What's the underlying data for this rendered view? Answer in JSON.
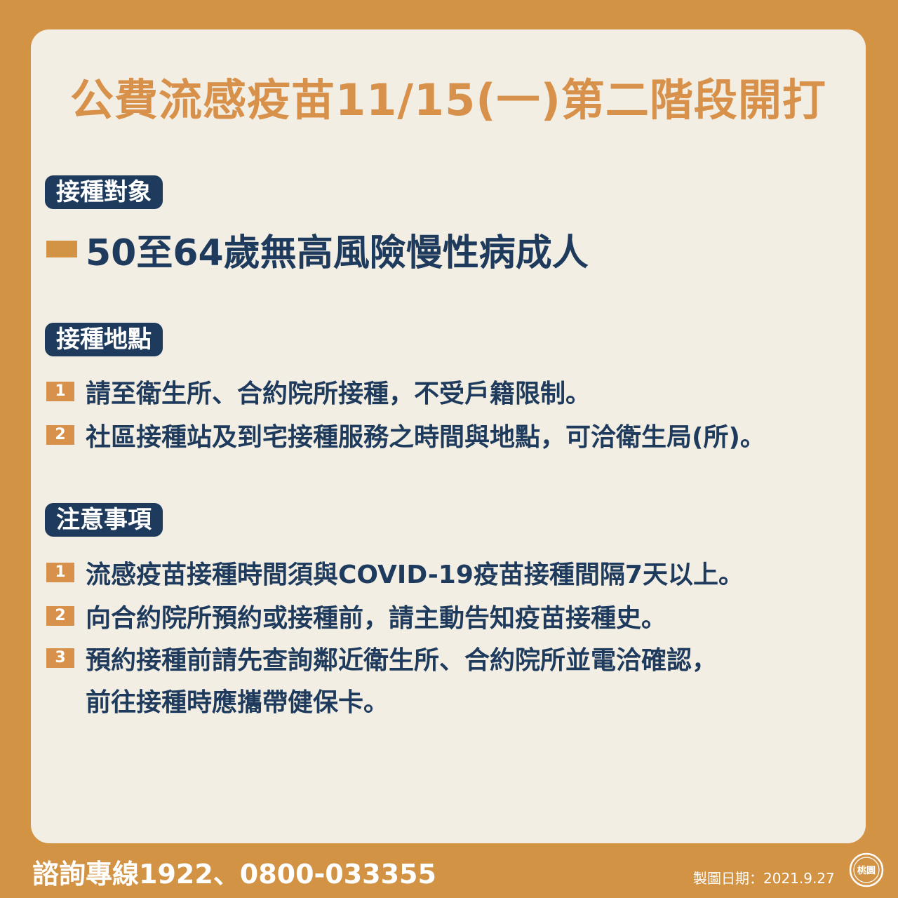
{
  "title": "公費流感疫苗11/15(一)第二階段開打",
  "section_target": {
    "tag": "接種對象",
    "text": "50至64歲無高風險慢性病成人"
  },
  "section_location": {
    "tag": "接種地點",
    "items": [
      {
        "num": "1",
        "text": "請至衛生所、合約院所接種，不受戶籍限制。"
      },
      {
        "num": "2",
        "text": "社區接種站及到宅接種服務之時間與地點，可洽衛生局(所)。"
      }
    ]
  },
  "section_notes": {
    "tag": "注意事項",
    "items": [
      {
        "num": "1",
        "text": "流感疫苗接種時間須與COVID-19疫苗接種間隔7天以上。"
      },
      {
        "num": "2",
        "text": "向合約院所預約或接種前，請主動告知疫苗接種史。"
      },
      {
        "num": "3",
        "text": "預約接種前請先查詢鄰近衛生所、合約院所並電洽確認，",
        "continuation": "前往接種時應攜帶健保卡。"
      }
    ]
  },
  "footer": {
    "hotline": "諮詢專線1922、0800-033355",
    "date": "製圖日期：2021.9.27",
    "seal_text": "桃園"
  },
  "colors": {
    "background": "#D29345",
    "card": "#F2EEE3",
    "title": "#D8914A",
    "navy": "#1E3A5C"
  }
}
